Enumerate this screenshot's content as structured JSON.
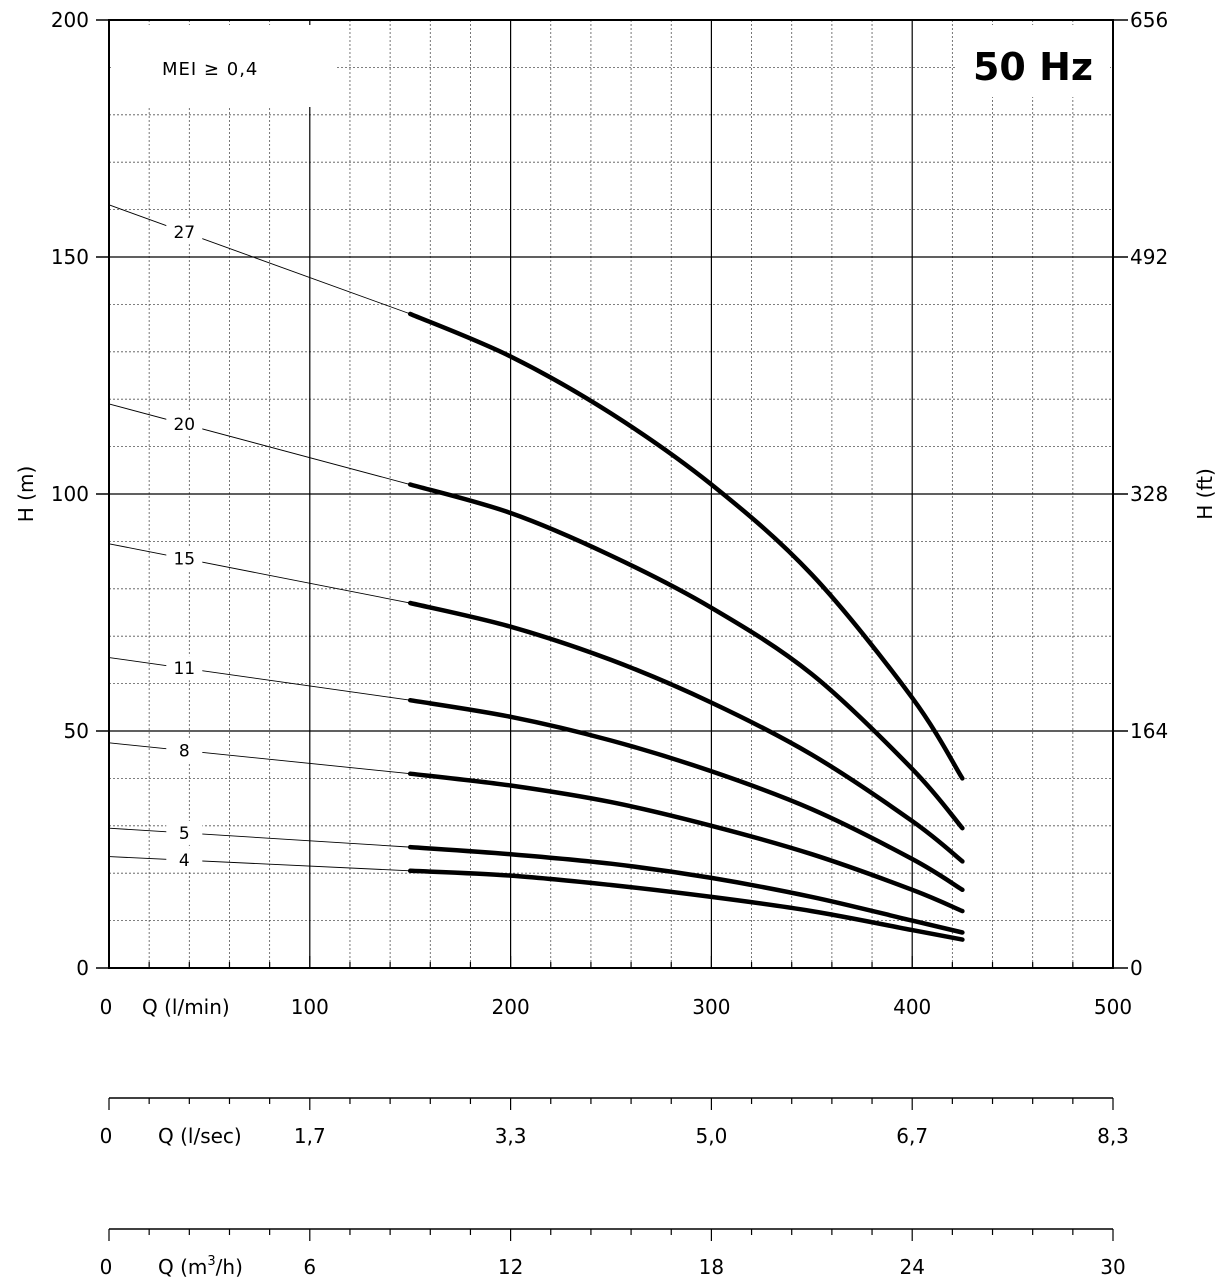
{
  "chart_data": {
    "type": "line",
    "title": "50 Hz",
    "annotation": "MEI ≥ 0,4",
    "xlabel": "Q (l/min)",
    "ylabel": "H (m)",
    "y2label": "H (ft)",
    "xlim": [
      0,
      500
    ],
    "ylim": [
      0,
      200
    ],
    "x_ticks": [
      "0",
      "100",
      "200",
      "300",
      "400",
      "500"
    ],
    "y_ticks": [
      "0",
      "50",
      "100",
      "150",
      "200"
    ],
    "y2_ticks": [
      "0",
      "164",
      "328",
      "492",
      "656"
    ],
    "grid": true,
    "secondary_x_axes": [
      {
        "label_prefix": "Q (l/sec)",
        "label_sup": "",
        "label_suffix": "",
        "ticks": [
          "0",
          "1,7",
          "3,3",
          "5,0",
          "6,7",
          "8,3"
        ]
      },
      {
        "label_prefix": "Q (m",
        "label_sup": "3",
        "label_suffix": "/h)",
        "ticks": [
          "0",
          "6",
          "12",
          "18",
          "24",
          "30"
        ]
      }
    ],
    "series": [
      {
        "name": "27",
        "x": [
          150,
          200,
          250,
          300,
          350,
          400,
          425
        ],
        "y": [
          138,
          129,
          117,
          102,
          83,
          57,
          40
        ],
        "leader_start": 161
      },
      {
        "name": "20",
        "x": [
          150,
          200,
          250,
          300,
          350,
          400,
          425
        ],
        "y": [
          102,
          96,
          87,
          76,
          62,
          42,
          29.5
        ],
        "leader_start": 119
      },
      {
        "name": "15",
        "x": [
          150,
          200,
          250,
          300,
          350,
          400,
          425
        ],
        "y": [
          77,
          72,
          65,
          56,
          45,
          31,
          22.5
        ],
        "leader_start": 89.5
      },
      {
        "name": "11",
        "x": [
          150,
          200,
          250,
          300,
          350,
          400,
          425
        ],
        "y": [
          56.5,
          53,
          48,
          41.5,
          33.5,
          23,
          16.5
        ],
        "leader_start": 65.5
      },
      {
        "name": "8",
        "x": [
          150,
          200,
          250,
          300,
          350,
          400,
          425
        ],
        "y": [
          41,
          38.5,
          35,
          30,
          24,
          16.5,
          12
        ],
        "leader_start": 47.5
      },
      {
        "name": "5",
        "x": [
          150,
          200,
          250,
          300,
          350,
          400,
          425
        ],
        "y": [
          25.5,
          24,
          22,
          19,
          15,
          10,
          7.5
        ],
        "leader_start": 29.5
      },
      {
        "name": "4",
        "x": [
          150,
          200,
          250,
          300,
          350,
          400,
          425
        ],
        "y": [
          20.5,
          19.5,
          17.5,
          15,
          12,
          8,
          6
        ],
        "leader_start": 23.5
      }
    ]
  }
}
